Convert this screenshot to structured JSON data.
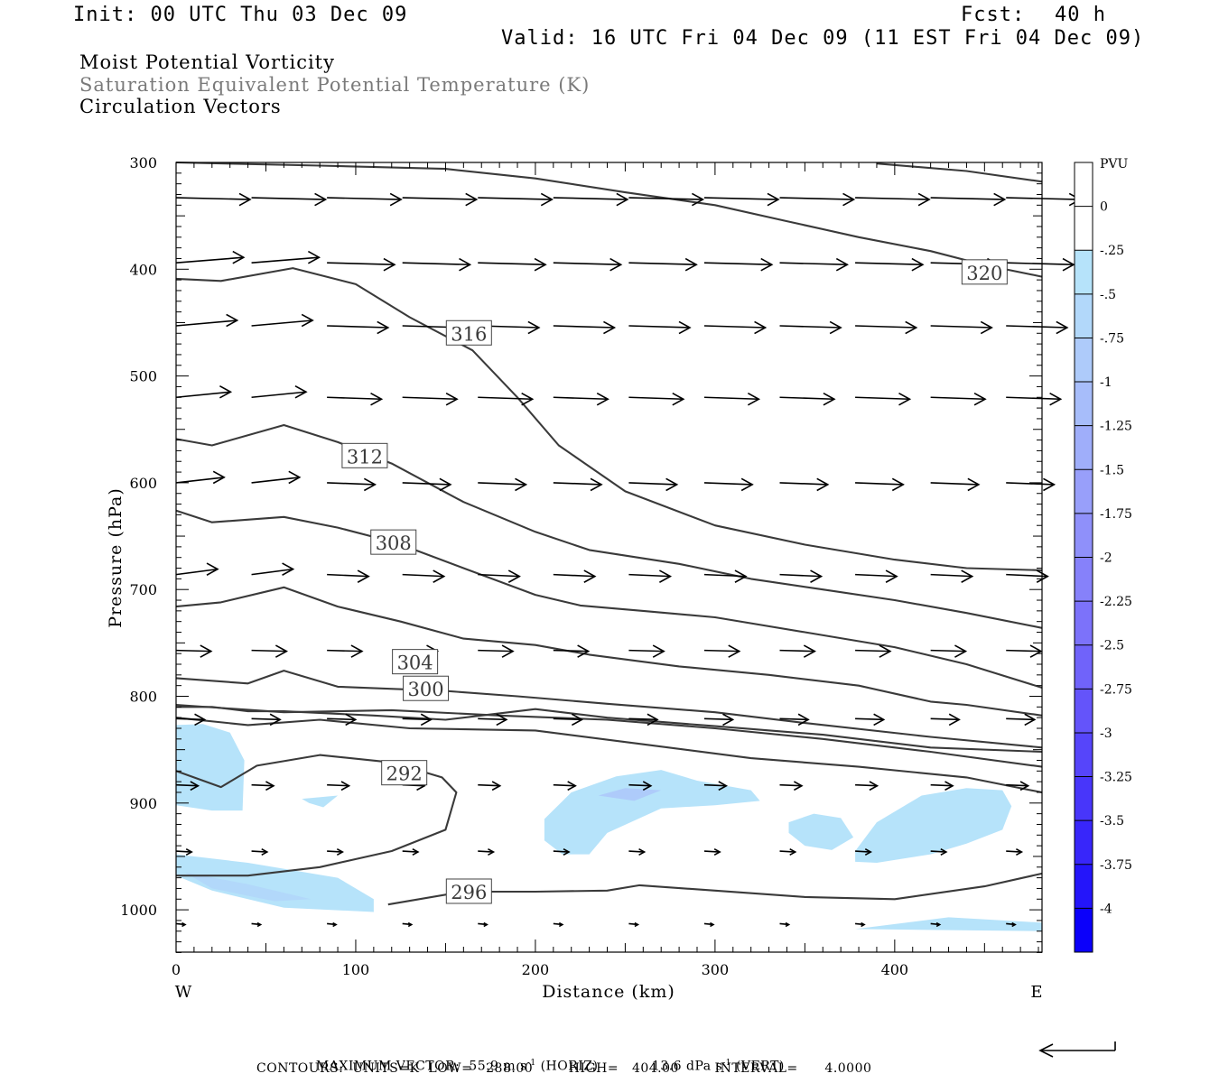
{
  "header": {
    "init": "Init: 00 UTC Thu 03 Dec 09",
    "fcst_label": "Fcst:",
    "fcst_value": "40 h",
    "valid": "Valid: 16 UTC Fri 04 Dec 09 (11 EST Fri 04 Dec 09)"
  },
  "titles": {
    "line1": "Moist Potential Vorticity",
    "line2": "Saturation Equivalent Potential Temperature (K)",
    "line3": "Circulation Vectors"
  },
  "footer": {
    "max_vector_label": "MAXIMUM VECTOR:",
    "horiz_value": "55.9 m s",
    "horiz_exp": "-1",
    "horiz_tag": "(HORIZ)",
    "vert_value": "13.6 dPa s",
    "vert_exp": "-1",
    "vert_tag": "(VERT)",
    "contours_line": "CONTOURS:  UNITS=K  LOW=   288.00        HIGH=   404.00        INTERVAL=      4.0000"
  },
  "chart_data": {
    "type": "contour",
    "xlabel": "Distance (km)",
    "ylabel": "Pressure (hPa)",
    "xlim": [
      0,
      482
    ],
    "ylim": [
      1040,
      300
    ],
    "x_ticks": [
      0,
      100,
      200,
      300,
      400
    ],
    "y_ticks": [
      300,
      400,
      500,
      600,
      700,
      800,
      900,
      1000
    ],
    "x_end_labels": {
      "left": "W",
      "right": "E"
    },
    "colorbar": {
      "label": "PVU",
      "levels": [
        "0",
        "-.25",
        "-.5",
        "-.75",
        "-1",
        "-1.25",
        "-1.5",
        "-1.75",
        "-2",
        "-2.25",
        "-2.5",
        "-2.75",
        "-3",
        "-3.25",
        "-3.5",
        "-3.75",
        "-4"
      ],
      "colors": [
        "#ffffff",
        "#ffffff",
        "#b6e3fa",
        "#b2d8fa",
        "#aecbfa",
        "#a7bdfa",
        "#9faefa",
        "#989ffa",
        "#8f90fa",
        "#8681fa",
        "#7c72fa",
        "#7063fa",
        "#6454fa",
        "#5645fa",
        "#4836fa",
        "#3826fa",
        "#2415fa",
        "#0b00fa"
      ]
    },
    "theta_es_contours": [
      {
        "label": "292",
        "label_at": [
          127,
          872
        ],
        "points": [
          [
            0,
            870
          ],
          [
            25,
            885
          ],
          [
            45,
            865
          ],
          [
            80,
            855
          ],
          [
            120,
            862
          ],
          [
            148,
            876
          ],
          [
            156,
            890
          ],
          [
            150,
            925
          ],
          [
            120,
            945
          ],
          [
            80,
            960
          ],
          [
            40,
            968
          ],
          [
            0,
            968
          ]
        ]
      },
      {
        "label": "296",
        "label_at": [
          163,
          983
        ],
        "points": [
          [
            118,
            995
          ],
          [
            160,
            983
          ],
          [
            200,
            983
          ],
          [
            240,
            982
          ],
          [
            258,
            977
          ],
          [
            300,
            982
          ],
          [
            350,
            988
          ],
          [
            400,
            990
          ],
          [
            450,
            978
          ],
          [
            482,
            966
          ]
        ]
      },
      {
        "label": "",
        "points": [
          [
            0,
            820
          ],
          [
            40,
            827
          ],
          [
            80,
            822
          ],
          [
            130,
            830
          ],
          [
            200,
            832
          ],
          [
            260,
            845
          ],
          [
            320,
            858
          ],
          [
            380,
            866
          ],
          [
            440,
            876
          ],
          [
            482,
            890
          ]
        ]
      },
      {
        "label": "",
        "points": [
          [
            0,
            808
          ],
          [
            60,
            815
          ],
          [
            120,
            813
          ],
          [
            180,
            818
          ],
          [
            240,
            822
          ],
          [
            300,
            830
          ],
          [
            360,
            840
          ],
          [
            420,
            852
          ],
          [
            482,
            866
          ]
        ]
      },
      {
        "label": "300",
        "label_at": [
          139,
          793
        ],
        "points": [
          [
            0,
            783
          ],
          [
            40,
            788
          ],
          [
            60,
            776
          ],
          [
            90,
            791
          ],
          [
            150,
            795
          ],
          [
            190,
            800
          ],
          [
            240,
            807
          ],
          [
            300,
            815
          ],
          [
            350,
            825
          ],
          [
            420,
            838
          ],
          [
            482,
            848
          ]
        ]
      },
      {
        "label": "",
        "points": [
          [
            0,
            810
          ],
          [
            20,
            810
          ],
          [
            40,
            814
          ],
          [
            60,
            814
          ],
          [
            110,
            818
          ],
          [
            150,
            822
          ],
          [
            200,
            812
          ],
          [
            240,
            820
          ],
          [
            300,
            828
          ],
          [
            360,
            836
          ],
          [
            420,
            848
          ],
          [
            482,
            852
          ]
        ]
      },
      {
        "label": "304",
        "label_at": [
          133,
          768
        ],
        "points": [
          [
            0,
            716
          ],
          [
            25,
            712
          ],
          [
            60,
            698
          ],
          [
            90,
            716
          ],
          [
            125,
            730
          ],
          [
            160,
            746
          ],
          [
            200,
            752
          ],
          [
            230,
            761
          ],
          [
            280,
            772
          ],
          [
            330,
            780
          ],
          [
            380,
            790
          ],
          [
            420,
            805
          ],
          [
            440,
            808
          ],
          [
            482,
            818
          ]
        ]
      },
      {
        "label": "308",
        "label_at": [
          121,
          656
        ],
        "points": [
          [
            0,
            626
          ],
          [
            20,
            637
          ],
          [
            60,
            632
          ],
          [
            90,
            642
          ],
          [
            122,
            656
          ],
          [
            160,
            680
          ],
          [
            200,
            705
          ],
          [
            225,
            715
          ],
          [
            260,
            720
          ],
          [
            300,
            726
          ],
          [
            350,
            740
          ],
          [
            400,
            754
          ],
          [
            440,
            770
          ],
          [
            482,
            792
          ]
        ]
      },
      {
        "label": "312",
        "label_at": [
          105,
          575
        ],
        "points": [
          [
            0,
            559
          ],
          [
            20,
            565
          ],
          [
            60,
            546
          ],
          [
            90,
            562
          ],
          [
            120,
            582
          ],
          [
            160,
            618
          ],
          [
            200,
            646
          ],
          [
            230,
            663
          ],
          [
            280,
            676
          ],
          [
            320,
            690
          ],
          [
            360,
            700
          ],
          [
            400,
            710
          ],
          [
            440,
            722
          ],
          [
            482,
            736
          ]
        ]
      },
      {
        "label": "316",
        "label_at": [
          163,
          460
        ],
        "points": [
          [
            0,
            409
          ],
          [
            25,
            411
          ],
          [
            65,
            399
          ],
          [
            100,
            414
          ],
          [
            130,
            445
          ],
          [
            165,
            476
          ],
          [
            190,
            520
          ],
          [
            213,
            565
          ],
          [
            250,
            608
          ],
          [
            300,
            640
          ],
          [
            350,
            658
          ],
          [
            400,
            672
          ],
          [
            440,
            680
          ],
          [
            482,
            682
          ]
        ]
      },
      {
        "label": "320",
        "label_at": [
          450,
          403
        ],
        "points": [
          [
            0,
            300
          ],
          [
            80,
            303
          ],
          [
            150,
            306
          ],
          [
            200,
            315
          ],
          [
            250,
            328
          ],
          [
            300,
            340
          ],
          [
            340,
            355
          ],
          [
            380,
            370
          ],
          [
            420,
            383
          ],
          [
            450,
            396
          ],
          [
            482,
            407
          ]
        ]
      },
      {
        "label": "",
        "points": [
          [
            390,
            301
          ],
          [
            440,
            308
          ],
          [
            482,
            318
          ]
        ]
      }
    ],
    "mpv_negative_regions": [
      {
        "level": "-.25",
        "points": [
          [
            0,
            827
          ],
          [
            15,
            826
          ],
          [
            30,
            834
          ],
          [
            38,
            860
          ],
          [
            37,
            907
          ],
          [
            20,
            907
          ],
          [
            0,
            902
          ]
        ]
      },
      {
        "level": "-.25",
        "points": [
          [
            0,
            948
          ],
          [
            40,
            956
          ],
          [
            90,
            970
          ],
          [
            110,
            990
          ],
          [
            110,
            1002
          ],
          [
            60,
            998
          ],
          [
            20,
            982
          ],
          [
            0,
            968
          ]
        ]
      },
      {
        "level": "-.5",
        "points": [
          [
            5,
            965
          ],
          [
            40,
            976
          ],
          [
            75,
            990
          ],
          [
            55,
            992
          ],
          [
            20,
            980
          ]
        ]
      },
      {
        "level": "-.25",
        "points": [
          [
            70,
            896
          ],
          [
            90,
            893
          ],
          [
            82,
            904
          ],
          [
            74,
            900
          ]
        ]
      },
      {
        "level": "-.25",
        "points": [
          [
            205,
            915
          ],
          [
            220,
            890
          ],
          [
            245,
            875
          ],
          [
            270,
            869
          ],
          [
            290,
            879
          ],
          [
            320,
            888
          ],
          [
            325,
            898
          ],
          [
            300,
            902
          ],
          [
            270,
            905
          ],
          [
            240,
            928
          ],
          [
            230,
            948
          ],
          [
            215,
            948
          ],
          [
            205,
            935
          ]
        ]
      },
      {
        "level": "-.75",
        "points": [
          [
            235,
            893
          ],
          [
            250,
            886
          ],
          [
            270,
            888
          ],
          [
            255,
            898
          ]
        ]
      },
      {
        "level": "-.25",
        "points": [
          [
            341,
            918
          ],
          [
            355,
            910
          ],
          [
            370,
            914
          ],
          [
            377,
            932
          ],
          [
            365,
            944
          ],
          [
            350,
            940
          ],
          [
            341,
            928
          ]
        ]
      },
      {
        "level": "-.25",
        "points": [
          [
            378,
            945
          ],
          [
            390,
            918
          ],
          [
            415,
            893
          ],
          [
            440,
            886
          ],
          [
            460,
            888
          ],
          [
            465,
            903
          ],
          [
            460,
            925
          ],
          [
            440,
            938
          ],
          [
            420,
            948
          ],
          [
            390,
            956
          ],
          [
            378,
            955
          ]
        ]
      },
      {
        "level": "-.25",
        "points": [
          [
            378,
            1018
          ],
          [
            430,
            1007
          ],
          [
            482,
            1012
          ],
          [
            482,
            1020
          ]
        ]
      }
    ],
    "vector_rows_hpa": [
      333,
      394,
      453,
      520,
      600,
      686,
      757,
      821,
      883,
      945,
      1013
    ],
    "vector_columns_km": [
      0,
      42,
      84,
      126,
      168,
      210,
      252,
      294,
      336,
      378,
      420,
      462
    ],
    "max_vector_horiz": "55.9",
    "max_vector_vert": "13.6"
  }
}
